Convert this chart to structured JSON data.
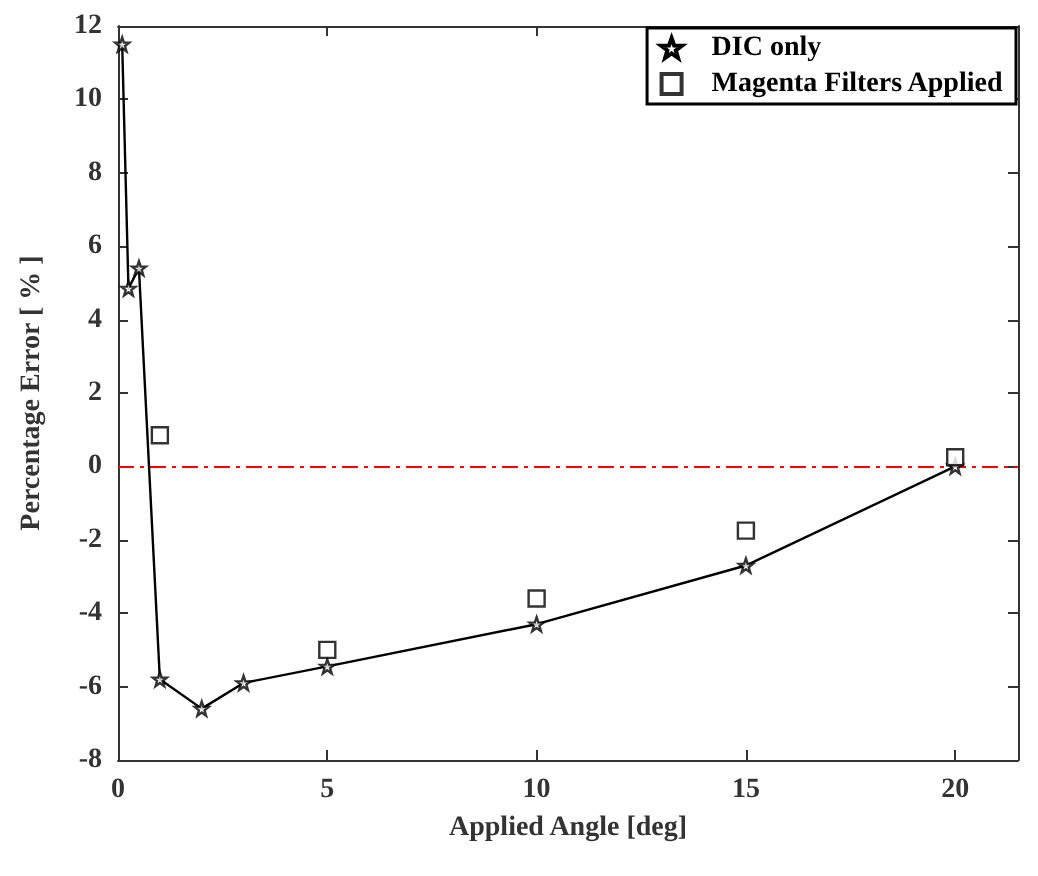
{
  "chart_data": {
    "type": "line",
    "xlabel": "Applied Angle [deg]",
    "ylabel": "Percentage Error [ % ]",
    "xlim": [
      0,
      21.5
    ],
    "xticks": [
      0,
      5,
      10,
      15,
      20
    ],
    "ylim": [
      -8,
      12
    ],
    "yticks": [
      -8,
      -6,
      -4,
      -2,
      0,
      2,
      4,
      6,
      8,
      10,
      12
    ],
    "grid": false,
    "legend": "top right",
    "series": [
      {
        "name": "DIC only",
        "marker": "star",
        "color": "#000000",
        "x": [
          0.1,
          0.25,
          0.5,
          1,
          2,
          3,
          5,
          10,
          15,
          20
        ],
        "values": [
          11.5,
          4.85,
          5.4,
          -5.8,
          -6.6,
          -5.9,
          -5.45,
          -4.3,
          -2.7,
          0
        ]
      },
      {
        "name": "Magenta Filters Applied",
        "type": "scatter",
        "marker": "square",
        "color": "#000000",
        "x": [
          1,
          5,
          10,
          15,
          20
        ],
        "values": [
          0.85,
          -5.0,
          -3.6,
          -1.75,
          0.25
        ]
      }
    ],
    "ref_lines": [
      {
        "axis": "y",
        "value": 0,
        "color": "#ff0000",
        "line_style": "dashed"
      }
    ]
  }
}
